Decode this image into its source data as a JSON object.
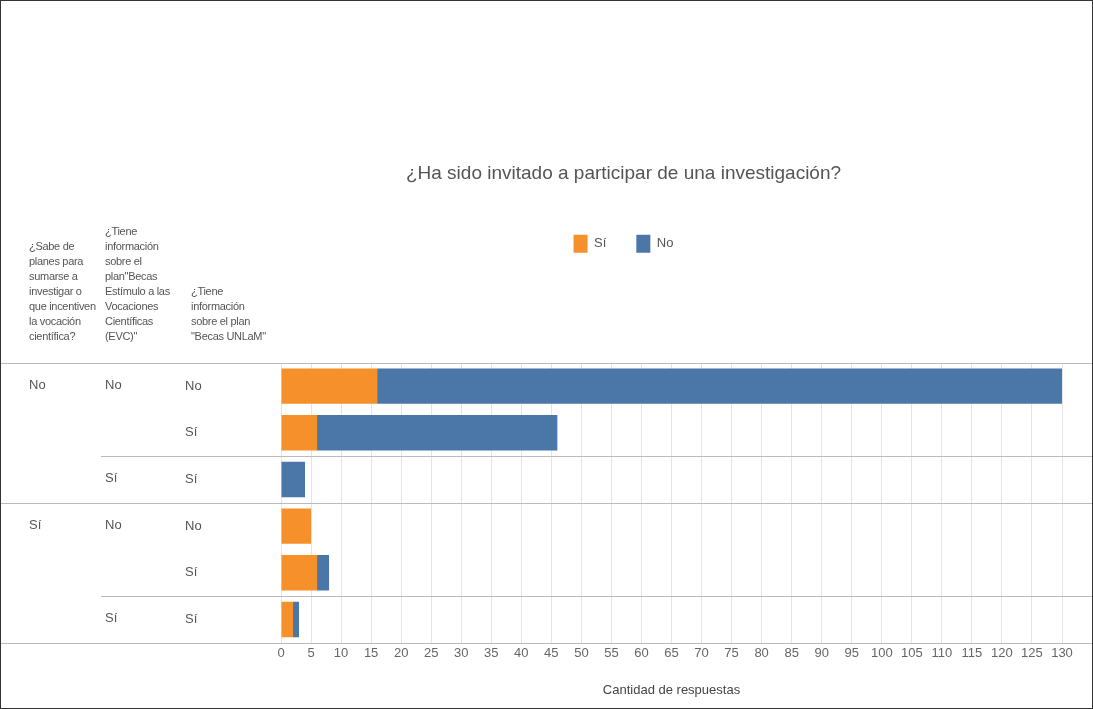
{
  "chart_data": {
    "type": "bar",
    "orientation": "horizontal",
    "stacked": true,
    "title": "¿Ha sido invitado a participar de una investigación?",
    "xlabel": "Cantidad de respuestas",
    "annotations": [
      "¿Sabe de planes para sumarse a investigar o que incentiven la vocación científica?",
      "¿Tiene información sobre el plan\"Becas Estímulo a las Vocaciones Científicas (EVC)\"",
      "¿Tiene información sobre el plan \"Becas UNLaM\"",
      "No",
      "Sí",
      "No",
      "Sí",
      "No",
      "Sí"
    ],
    "categories": [
      "No",
      "Sí",
      "Sí",
      "No",
      "Sí",
      "Sí"
    ],
    "series": [
      {
        "name": "Sí",
        "color": "#f5902a",
        "values": [
          16,
          6,
          0,
          5,
          6,
          2
        ]
      },
      {
        "name": "No",
        "color": "#4a77a8",
        "values": [
          114,
          40,
          4,
          0,
          2,
          1
        ]
      }
    ],
    "xlim": [
      0,
      130
    ],
    "xticks": [
      0,
      5,
      10,
      15,
      20,
      25,
      30,
      35,
      40,
      45,
      50,
      55,
      60,
      65,
      70,
      75,
      80,
      85,
      90,
      95,
      100,
      105,
      110,
      115,
      120,
      125,
      130
    ],
    "grid": "x",
    "legend": "top"
  }
}
